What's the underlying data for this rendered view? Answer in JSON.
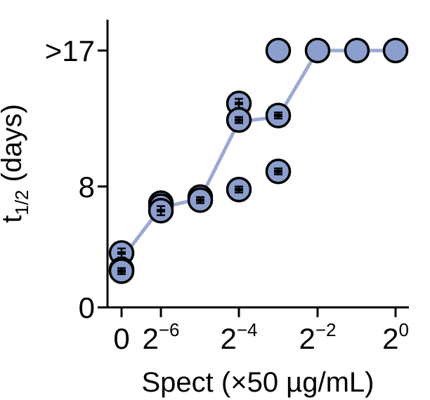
{
  "chart_data": {
    "type": "scatter",
    "title": "",
    "xlabel": "Spect (×50 µg/mL)",
    "ylabel_main": "t",
    "ylabel_sub": "1/2",
    "ylabel_rest": " (days)",
    "x_ticks": [
      {
        "base": "0",
        "exp": ""
      },
      {
        "base": "2",
        "exp": "−6"
      },
      {
        "base": "2",
        "exp": "−4"
      },
      {
        "base": "2",
        "exp": "−2"
      },
      {
        "base": "2",
        "exp": "0"
      }
    ],
    "y_ticks": [
      "0",
      "8",
      ">17"
    ],
    "ylim": [
      0,
      17
    ],
    "x_positions": [
      "0",
      "2^-6",
      "2^-5",
      "2^-4",
      "2^-3",
      "2^-2",
      "2^-1",
      "2^0"
    ],
    "trend_line": [
      {
        "x": "0",
        "y": 3.2
      },
      {
        "x": "2^-6",
        "y": 6.6
      },
      {
        "x": "2^-5",
        "y": 7.2
      },
      {
        "x": "2^-4",
        "y": 12.3
      },
      {
        "x": "2^-3",
        "y": 12.6
      },
      {
        "x": "2^-2",
        "y": 17
      },
      {
        "x": "2^-1",
        "y": 17
      },
      {
        "x": "2^0",
        "y": 17
      }
    ],
    "points": [
      {
        "x": "0",
        "y": 3.6,
        "err": 0.3
      },
      {
        "x": "0",
        "y": 2.5,
        "err": 0.2
      },
      {
        "x": "0",
        "y": 2.4,
        "err": 0.2
      },
      {
        "x": "2^-6",
        "y": 6.9,
        "err": 0.2
      },
      {
        "x": "2^-6",
        "y": 6.7,
        "err": 0.3
      },
      {
        "x": "2^-6",
        "y": 6.4,
        "err": 0.3
      },
      {
        "x": "2^-5",
        "y": 7.3,
        "err": 0.2
      },
      {
        "x": "2^-5",
        "y": 7.1,
        "err": 0.2
      },
      {
        "x": "2^-4",
        "y": 13.5,
        "err": 0.3
      },
      {
        "x": "2^-4",
        "y": 12.4,
        "err": 0.2
      },
      {
        "x": "2^-4",
        "y": 7.8,
        "err": 0.2
      },
      {
        "x": "2^-3",
        "y": 12.7,
        "err": 0.2
      },
      {
        "x": "2^-3",
        "y": 9.0,
        "err": 0.2
      },
      {
        "x": "2^-3",
        "y": 17,
        "err": 0
      },
      {
        "x": "2^-2",
        "y": 17,
        "err": 0
      },
      {
        "x": "2^-1",
        "y": 17,
        "err": 0
      },
      {
        "x": "2^0",
        "y": 17,
        "err": 0
      }
    ],
    "colors": {
      "marker_fill": "#8b9fcf",
      "marker_edge": "#000000",
      "line": "#9aaad4",
      "axis": "#000000"
    },
    "legend": "none",
    "grid": false
  }
}
